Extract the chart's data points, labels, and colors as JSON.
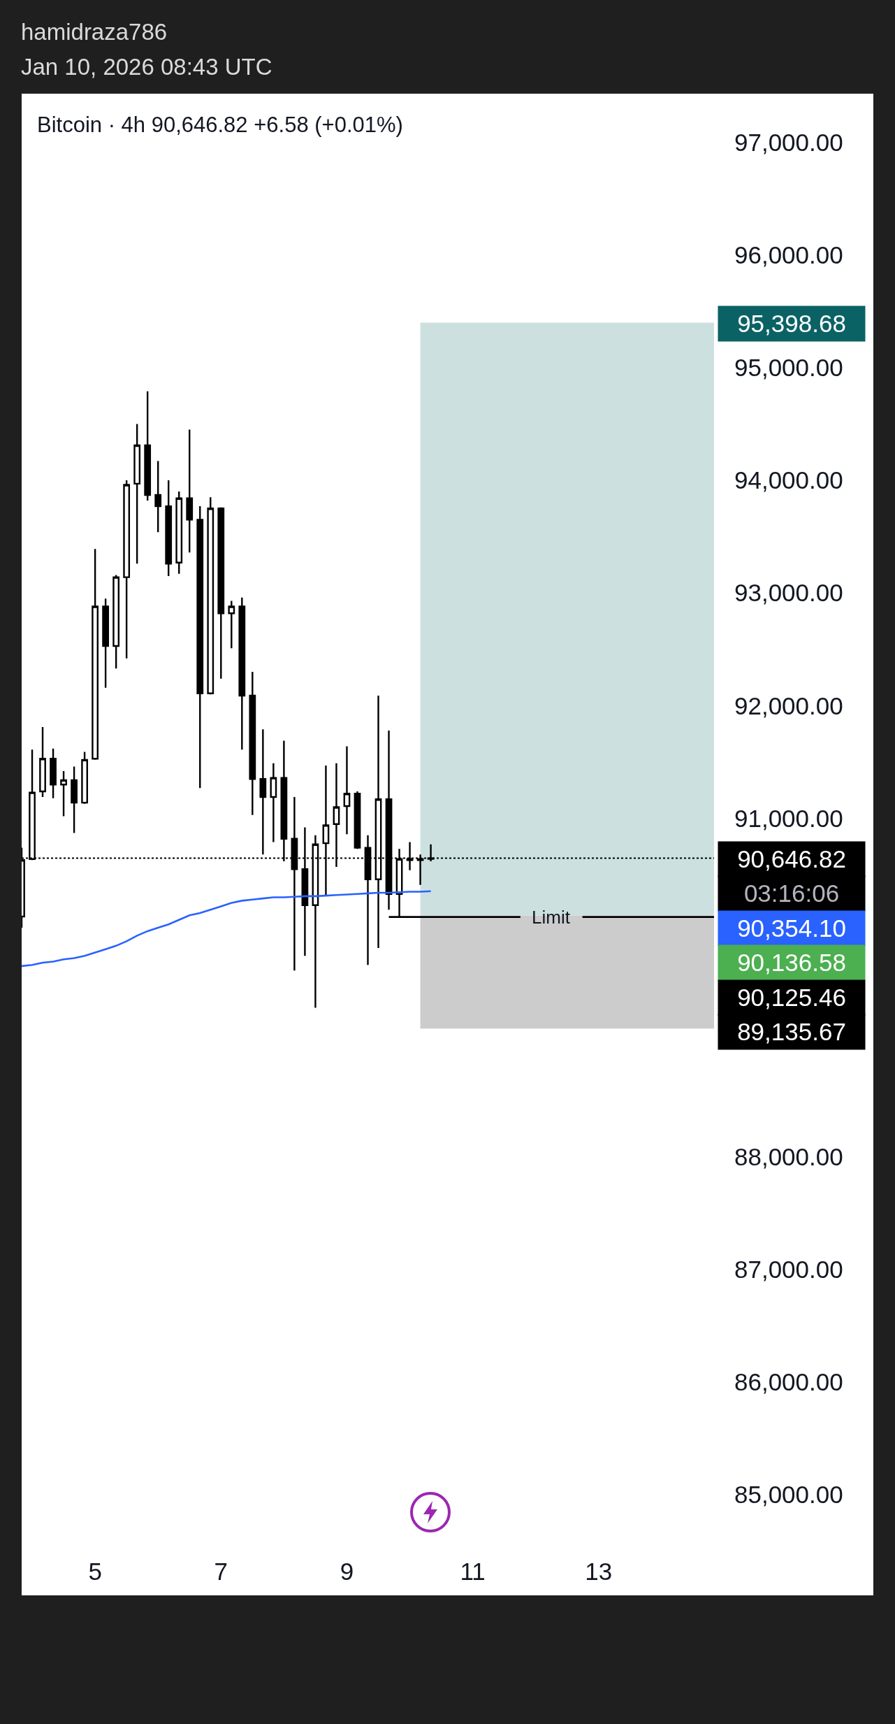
{
  "chart_data": {
    "type": "candlestick",
    "title": "Bitcoin · 4h 90,646.82 +6.58 (+0.01%)",
    "x": [
      "2026-01-03T20:00",
      "2026-01-04T00:00",
      "2026-01-04T04:00",
      "2026-01-04T08:00",
      "2026-01-04T12:00",
      "2026-01-04T16:00",
      "2026-01-04T20:00",
      "2026-01-05T00:00",
      "2026-01-05T04:00",
      "2026-01-05T08:00",
      "2026-01-05T12:00",
      "2026-01-05T16:00",
      "2026-01-05T20:00",
      "2026-01-06T00:00",
      "2026-01-06T04:00",
      "2026-01-06T08:00",
      "2026-01-06T12:00",
      "2026-01-06T16:00",
      "2026-01-06T20:00",
      "2026-01-07T00:00",
      "2026-01-07T04:00",
      "2026-01-07T08:00",
      "2026-01-07T12:00",
      "2026-01-07T16:00",
      "2026-01-07T20:00",
      "2026-01-08T00:00",
      "2026-01-08T04:00",
      "2026-01-08T08:00",
      "2026-01-08T12:00",
      "2026-01-08T16:00",
      "2026-01-08T20:00",
      "2026-01-09T00:00",
      "2026-01-09T04:00",
      "2026-01-09T08:00",
      "2026-01-09T12:00",
      "2026-01-09T16:00",
      "2026-01-09T20:00",
      "2026-01-10T00:00",
      "2026-01-10T04:00",
      "2026-01-10T08:00"
    ],
    "ohlc": [
      [
        90130,
        90740,
        90030,
        90630
      ],
      [
        90640,
        91610,
        90630,
        91230
      ],
      [
        91240,
        91810,
        91190,
        91530
      ],
      [
        91530,
        91620,
        91180,
        91300
      ],
      [
        91300,
        91420,
        91020,
        91340
      ],
      [
        91340,
        91460,
        90870,
        91140
      ],
      [
        91140,
        91590,
        91130,
        91520
      ],
      [
        91530,
        93390,
        91520,
        92880
      ],
      [
        92880,
        92950,
        92160,
        92530
      ],
      [
        92530,
        93160,
        92330,
        93140
      ],
      [
        93140,
        94000,
        92420,
        93960
      ],
      [
        93970,
        94500,
        93260,
        94310
      ],
      [
        94310,
        94790,
        93820,
        93870
      ],
      [
        93870,
        94170,
        93540,
        93770
      ],
      [
        93770,
        94000,
        93150,
        93260
      ],
      [
        93270,
        93900,
        93170,
        93840
      ],
      [
        93840,
        94450,
        93360,
        93650
      ],
      [
        93650,
        93770,
        91270,
        92110
      ],
      [
        92110,
        93850,
        92100,
        93750
      ],
      [
        93750,
        93760,
        92240,
        92820
      ],
      [
        92820,
        92930,
        92510,
        92880
      ],
      [
        92880,
        92960,
        91610,
        92090
      ],
      [
        92090,
        92300,
        91030,
        91350
      ],
      [
        91350,
        91790,
        90680,
        91190
      ],
      [
        91190,
        91490,
        90790,
        91360
      ],
      [
        91360,
        91690,
        90620,
        90820
      ],
      [
        90820,
        91190,
        89650,
        90550
      ],
      [
        90550,
        90920,
        89780,
        90230
      ],
      [
        90230,
        90850,
        89320,
        90770
      ],
      [
        90780,
        91470,
        90320,
        90940
      ],
      [
        90950,
        91490,
        90570,
        91100
      ],
      [
        91110,
        91640,
        90860,
        91220
      ],
      [
        91220,
        91240,
        90730,
        90740
      ],
      [
        90740,
        90850,
        89700,
        90460
      ],
      [
        90460,
        92090,
        89850,
        91170
      ],
      [
        91170,
        91780,
        90190,
        90330
      ],
      [
        90330,
        90730,
        90130,
        90640
      ],
      [
        90640,
        90790,
        90540,
        90630
      ],
      [
        90630,
        90680,
        90410,
        90640.24
      ],
      [
        90640.24,
        90770,
        90620,
        90646.82
      ]
    ],
    "color": "#000000",
    "series": [
      {
        "type": "line",
        "color": "#2962ff",
        "values": [
          89690,
          89700,
          89720,
          89730,
          89750,
          89760,
          89780,
          89810,
          89840,
          89870,
          89910,
          89960,
          90000,
          90030,
          90060,
          90100,
          90140,
          90160,
          90190,
          90220,
          90250,
          90270,
          90280,
          90290,
          90300,
          90300,
          90305,
          90310,
          90310,
          90315,
          90320,
          90325,
          90330,
          90335,
          90340,
          90340,
          90345,
          90350,
          90350,
          90354.1
        ]
      }
    ],
    "xlim": [
      "2026-01-03T20:00",
      "2026-01-14T20:00"
    ],
    "xticks": [
      {
        "value": "2026-01-05",
        "label": "5"
      },
      {
        "value": "2026-01-07",
        "label": "7"
      },
      {
        "value": "2026-01-09",
        "label": "9"
      },
      {
        "value": "2026-01-11",
        "label": "11"
      },
      {
        "value": "2026-01-13",
        "label": "13"
      }
    ],
    "ylim": [
      85000,
      97430
    ],
    "yticks": [
      {
        "value": 85000,
        "label": "85,000.00"
      },
      {
        "value": 86000,
        "label": "86,000.00"
      },
      {
        "value": 87000,
        "label": "87,000.00"
      },
      {
        "value": 88000,
        "label": "88,000.00"
      },
      {
        "value": 91000,
        "label": "91,000.00"
      },
      {
        "value": 92000,
        "label": "92,000.00"
      },
      {
        "value": 93000,
        "label": "93,000.00"
      },
      {
        "value": 94000,
        "label": "94,000.00"
      },
      {
        "value": 95000,
        "label": "95,000.00"
      },
      {
        "value": 96000,
        "label": "96,000.00"
      },
      {
        "value": 97000,
        "label": "97,000.00"
      }
    ],
    "bands": [
      {
        "axis": "y",
        "from": 90136.58,
        "to": 95398.68,
        "color": "#cce0e0"
      },
      {
        "axis": "y",
        "from": 89135.67,
        "to": 90136.58,
        "color": "#cccccc"
      }
    ],
    "ref_lines": [
      {
        "axis": "y",
        "value": 90646.82,
        "color": "#000000",
        "line_style": "dotted"
      },
      {
        "axis": "y",
        "value": 90125.46,
        "label": "Limit",
        "color": "#000000",
        "line_style": "solid"
      }
    ],
    "annotations": [
      "hamidraza786",
      "Jan 10, 2026 08:43 UTC",
      {
        "text": "95,398.68",
        "x": "2026-01-14T20:00",
        "y": 95398.68
      },
      {
        "text": "90,646.82",
        "x": "2026-01-14T20:00",
        "y": 90646.82
      },
      {
        "text": "03:16:06",
        "x": "2026-01-14T20:00",
        "y": 90646.82
      },
      {
        "text": "90,354.10",
        "x": "2026-01-14T20:00",
        "y": 90354.1
      },
      {
        "text": "90,136.58",
        "x": "2026-01-14T20:00",
        "y": 90136.58
      },
      {
        "text": "90,125.46",
        "x": "2026-01-14T20:00",
        "y": 90125.46
      },
      {
        "text": "89,135.67",
        "x": "2026-01-14T20:00",
        "y": 89135.67
      }
    ]
  }
}
